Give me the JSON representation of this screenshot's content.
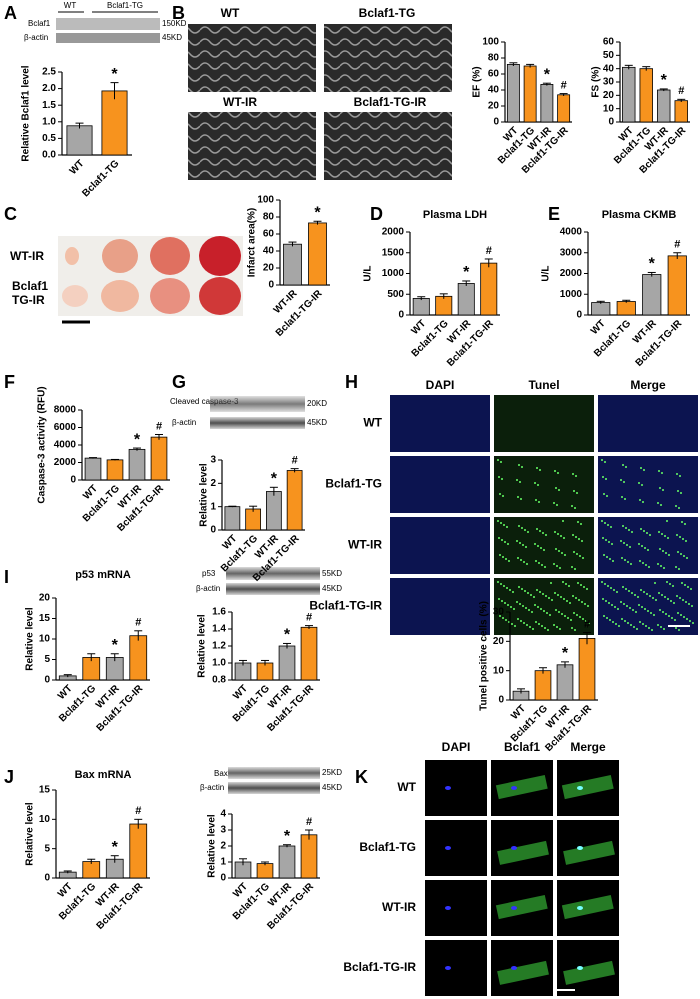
{
  "panel_letters": [
    "A",
    "B",
    "C",
    "D",
    "E",
    "F",
    "G",
    "H",
    "I",
    "J",
    "K"
  ],
  "blots": {
    "A": {
      "lanes": [
        "WT",
        "Bclaf1-TG"
      ],
      "rows": [
        "Bclaf1",
        "β-actin"
      ],
      "sizes": [
        "150KD",
        "45KD"
      ]
    },
    "G": {
      "rows": [
        "Cleaved caspase-3",
        "β-actin"
      ],
      "sizes": [
        "20KD",
        "45KD"
      ]
    },
    "I": {
      "rows": [
        "p53",
        "β-actin"
      ],
      "sizes": [
        "55KD",
        "45KD"
      ]
    },
    "J": {
      "rows": [
        "Bax",
        "β-actin"
      ],
      "sizes": [
        "25KD",
        "45KD"
      ]
    }
  },
  "echo_labels": [
    "WT",
    "Bclaf1-TG",
    "WT-IR",
    "Bclaf1-TG-IR"
  ],
  "heart_labels": [
    "WT-IR",
    "Bclaf1",
    "TG-IR"
  ],
  "tunel_images": {
    "columns": [
      "DAPI",
      "Tunel",
      "Merge"
    ],
    "rows": [
      "WT",
      "Bclaf1-TG",
      "WT-IR",
      "Bclaf1-TG-IR"
    ]
  },
  "cell_images": {
    "columns": [
      "DAPI",
      "Bclaf1",
      "Merge"
    ],
    "rows": [
      "WT",
      "Bclaf1-TG",
      "WT-IR",
      "Bclaf1-TG-IR"
    ]
  },
  "chart_data": [
    {
      "type": "bar",
      "ylabel": "Relative Bclaf1 level",
      "categories": [
        "WT",
        "Bclaf1-TG"
      ],
      "values": [
        0.88,
        1.93
      ],
      "errors": [
        0.08,
        0.25
      ],
      "colors": [
        "#a6a6a6",
        "#f7931e"
      ],
      "markers": [
        null,
        "*"
      ],
      "ylim": [
        0,
        2.5
      ],
      "yticks": [
        {
          "value": 0,
          "label": "0.0"
        },
        0.5,
        {
          "value": 1,
          "label": "1.0"
        },
        1.5,
        {
          "value": 2,
          "label": "2.0"
        },
        2.5
      ]
    },
    {
      "type": "bar",
      "ylabel": "EF (%)",
      "categories": [
        "WT",
        "Bclaf1-TG",
        "WT-IR",
        "Bclaf1-TG-IR"
      ],
      "values": [
        72,
        70,
        47,
        34
      ],
      "errors": [
        2,
        2,
        1.5,
        1.5
      ],
      "colors": [
        "#a6a6a6",
        "#f7931e",
        "#a6a6a6",
        "#f7931e"
      ],
      "markers": [
        null,
        null,
        "*",
        "#"
      ],
      "ylim": [
        0,
        100
      ],
      "yticks": [
        0,
        20,
        40,
        60,
        80,
        100
      ]
    },
    {
      "type": "bar",
      "ylabel": "FS (%)",
      "categories": [
        "WT",
        "Bclaf1-TG",
        "WT-IR",
        "Bclaf1-TG-IR"
      ],
      "values": [
        41,
        40,
        24,
        16
      ],
      "errors": [
        1.5,
        1.5,
        0.8,
        1
      ],
      "colors": [
        "#a6a6a6",
        "#f7931e",
        "#a6a6a6",
        "#f7931e"
      ],
      "markers": [
        null,
        null,
        "*",
        "#"
      ],
      "ylim": [
        0,
        60
      ],
      "yticks": [
        0,
        10,
        20,
        30,
        40,
        50,
        60
      ]
    },
    {
      "type": "bar",
      "ylabel": "Infarct area(%)",
      "categories": [
        "WT-IR",
        "Bclaf1-TG-IR"
      ],
      "values": [
        48,
        73
      ],
      "errors": [
        2.5,
        2
      ],
      "colors": [
        "#a6a6a6",
        "#f7931e"
      ],
      "markers": [
        null,
        "*"
      ],
      "ylim": [
        0,
        100
      ],
      "yticks": [
        0,
        20,
        40,
        60,
        80,
        100
      ]
    },
    {
      "type": "bar",
      "title": "Plasma LDH",
      "ylabel": "U/L",
      "categories": [
        "WT",
        "Bclaf1-TG",
        "WT-IR",
        "Bclaf1-TG-IR"
      ],
      "values": [
        400,
        450,
        760,
        1250
      ],
      "errors": [
        40,
        60,
        60,
        100
      ],
      "colors": [
        "#a6a6a6",
        "#f7931e",
        "#a6a6a6",
        "#f7931e"
      ],
      "markers": [
        null,
        null,
        "*",
        "#"
      ],
      "ylim": [
        0,
        2000
      ],
      "yticks": [
        0,
        500,
        1000,
        1500,
        2000
      ]
    },
    {
      "type": "bar",
      "title": "Plasma CKMB",
      "ylabel": "U/L",
      "categories": [
        "WT",
        "Bclaf1-TG",
        "WT-IR",
        "Bclaf1-TG-IR"
      ],
      "values": [
        600,
        650,
        1950,
        2850
      ],
      "errors": [
        60,
        60,
        100,
        150
      ],
      "colors": [
        "#a6a6a6",
        "#f7931e",
        "#a6a6a6",
        "#f7931e"
      ],
      "markers": [
        null,
        null,
        "*",
        "#"
      ],
      "ylim": [
        0,
        4000
      ],
      "yticks": [
        0,
        1000,
        2000,
        3000,
        4000
      ]
    },
    {
      "type": "bar",
      "ylabel": "Caspase-3 activity (RFU)",
      "categories": [
        "WT",
        "Bclaf1-TG",
        "WT-IR",
        "Bclaf1-TG-IR"
      ],
      "values": [
        2500,
        2300,
        3500,
        4900
      ],
      "errors": [
        60,
        50,
        150,
        300
      ],
      "colors": [
        "#a6a6a6",
        "#f7931e",
        "#a6a6a6",
        "#f7931e"
      ],
      "markers": [
        null,
        null,
        "*",
        "#"
      ],
      "ylim": [
        0,
        8000
      ],
      "yticks": [
        0,
        2000,
        4000,
        6000,
        8000
      ]
    },
    {
      "type": "bar",
      "ylabel": "Relative level",
      "categories": [
        "WT",
        "Bclaf1-TG",
        "WT-IR",
        "Bclaf1-TG-IR"
      ],
      "values": [
        1.0,
        0.9,
        1.65,
        2.55
      ],
      "errors": [
        0.02,
        0.12,
        0.18,
        0.08
      ],
      "colors": [
        "#a6a6a6",
        "#f7931e",
        "#a6a6a6",
        "#f7931e"
      ],
      "markers": [
        null,
        null,
        "*",
        "#"
      ],
      "ylim": [
        0,
        3
      ],
      "yticks": [
        0,
        1,
        2,
        3
      ]
    },
    {
      "type": "bar",
      "ylabel": "Tunel positive cells (%)",
      "categories": [
        "WT",
        "Bclaf1-TG",
        "WT-IR",
        "Bclaf1-TG-IR"
      ],
      "values": [
        3,
        10,
        12,
        21
      ],
      "errors": [
        0.8,
        1,
        1,
        2
      ],
      "colors": [
        "#a6a6a6",
        "#f7931e",
        "#a6a6a6",
        "#f7931e"
      ],
      "markers": [
        null,
        null,
        "*",
        "#"
      ],
      "ylim": [
        0,
        30
      ],
      "yticks": [
        0,
        10,
        20,
        30
      ]
    },
    {
      "type": "bar",
      "title": "p53 mRNA",
      "ylabel": "Relative level",
      "categories": [
        "WT",
        "Bclaf1-TG",
        "WT-IR",
        "Bclaf1-TG-IR"
      ],
      "values": [
        1,
        5.5,
        5.5,
        10.8
      ],
      "errors": [
        0.3,
        0.9,
        0.9,
        1.2
      ],
      "colors": [
        "#a6a6a6",
        "#f7931e",
        "#a6a6a6",
        "#f7931e"
      ],
      "markers": [
        null,
        null,
        "*",
        "#"
      ],
      "ylim": [
        0,
        20
      ],
      "yticks": [
        0,
        5,
        10,
        15,
        20
      ]
    },
    {
      "type": "bar",
      "ylabel": "Relative level",
      "categories": [
        "WT",
        "Bclaf1-TG",
        "WT-IR",
        "Bclaf1-TG-IR"
      ],
      "values": [
        1.0,
        1.0,
        1.2,
        1.42
      ],
      "errors": [
        0.03,
        0.03,
        0.03,
        0.02
      ],
      "colors": [
        "#a6a6a6",
        "#f7931e",
        "#a6a6a6",
        "#f7931e"
      ],
      "markers": [
        null,
        null,
        "*",
        "#"
      ],
      "ylim": [
        0.8,
        1.6
      ],
      "yticks": [
        0.8,
        {
          "value": 1,
          "label": "1.0"
        },
        1.2,
        1.4,
        1.6
      ]
    },
    {
      "type": "bar",
      "title": "Bax mRNA",
      "ylabel": "Relative level",
      "categories": [
        "WT",
        "Bclaf1-TG",
        "WT-IR",
        "Bclaf1-TG-IR"
      ],
      "values": [
        1,
        2.8,
        3.2,
        9.2
      ],
      "errors": [
        0.2,
        0.4,
        0.6,
        0.8
      ],
      "colors": [
        "#a6a6a6",
        "#f7931e",
        "#a6a6a6",
        "#f7931e"
      ],
      "markers": [
        null,
        null,
        "*",
        "#"
      ],
      "ylim": [
        0,
        15
      ],
      "yticks": [
        0,
        5,
        10,
        15
      ]
    },
    {
      "type": "bar",
      "ylabel": "Relative level",
      "categories": [
        "WT",
        "Bclaf1-TG",
        "WT-IR",
        "Bclaf1-TG-IR"
      ],
      "values": [
        1.0,
        0.9,
        2.0,
        2.7
      ],
      "errors": [
        0.2,
        0.1,
        0.08,
        0.3
      ],
      "colors": [
        "#a6a6a6",
        "#f7931e",
        "#a6a6a6",
        "#f7931e"
      ],
      "markers": [
        null,
        null,
        "*",
        "#"
      ],
      "ylim": [
        0,
        4
      ],
      "yticks": [
        0,
        1,
        2,
        3,
        4
      ]
    }
  ]
}
